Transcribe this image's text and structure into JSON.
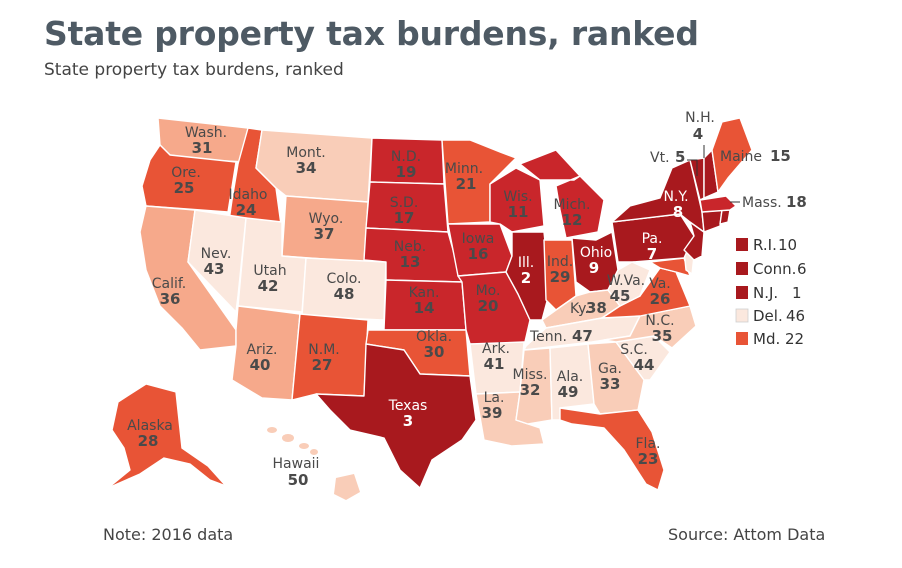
{
  "title": "State property tax burdens, ranked",
  "subtitle": "State property tax burdens, ranked",
  "note": "Note: 2016 data",
  "source": "Source: Attom Data",
  "colors": {
    "darkest": "#a8191e",
    "dark": "#c9262b",
    "medium": "#e85436",
    "orange": "#f0724c",
    "light": "#f6a98b",
    "pale": "#f9cdb8",
    "palest": "#fbe8de"
  },
  "states": {
    "WA": {
      "name": "Wash.",
      "rank": "31"
    },
    "OR": {
      "name": "Ore.",
      "rank": "25"
    },
    "CA": {
      "name": "Calif.",
      "rank": "36"
    },
    "ID": {
      "name": "Idaho",
      "rank": "24"
    },
    "NV": {
      "name": "Nev.",
      "rank": "43"
    },
    "MT": {
      "name": "Mont.",
      "rank": "34"
    },
    "WY": {
      "name": "Wyo.",
      "rank": "37"
    },
    "UT": {
      "name": "Utah",
      "rank": "42"
    },
    "CO": {
      "name": "Colo.",
      "rank": "48"
    },
    "AZ": {
      "name": "Ariz.",
      "rank": "40"
    },
    "NM": {
      "name": "N.M.",
      "rank": "27"
    },
    "ND": {
      "name": "N.D.",
      "rank": "19"
    },
    "SD": {
      "name": "S.D.",
      "rank": "17"
    },
    "NE": {
      "name": "Neb.",
      "rank": "13"
    },
    "KS": {
      "name": "Kan.",
      "rank": "14"
    },
    "OK": {
      "name": "Okla.",
      "rank": "30"
    },
    "TX": {
      "name": "Texas",
      "rank": "3"
    },
    "MN": {
      "name": "Minn.",
      "rank": "21"
    },
    "IA": {
      "name": "Iowa",
      "rank": "16"
    },
    "MO": {
      "name": "Mo.",
      "rank": "20"
    },
    "AR": {
      "name": "Ark.",
      "rank": "41"
    },
    "LA": {
      "name": "La.",
      "rank": "39"
    },
    "WI": {
      "name": "Wis.",
      "rank": "11"
    },
    "IL": {
      "name": "Ill.",
      "rank": "2"
    },
    "MI": {
      "name": "Mich.",
      "rank": "12"
    },
    "IN": {
      "name": "Ind.",
      "rank": "29"
    },
    "OH": {
      "name": "Ohio",
      "rank": "9"
    },
    "KY": {
      "name": "Ky.",
      "rank": "38"
    },
    "TN": {
      "name": "Tenn.",
      "rank": "47"
    },
    "MS": {
      "name": "Miss.",
      "rank": "32"
    },
    "AL": {
      "name": "Ala.",
      "rank": "49"
    },
    "GA": {
      "name": "Ga.",
      "rank": "33"
    },
    "FL": {
      "name": "Fla.",
      "rank": "23"
    },
    "SC": {
      "name": "S.C.",
      "rank": "44"
    },
    "NC": {
      "name": "N.C.",
      "rank": "35"
    },
    "VA": {
      "name": "Va.",
      "rank": "26"
    },
    "WV": {
      "name": "W.Va.",
      "rank": "45"
    },
    "PA": {
      "name": "Pa.",
      "rank": "7"
    },
    "NY": {
      "name": "N.Y.",
      "rank": "8"
    },
    "VT": {
      "name": "Vt.",
      "rank": "5"
    },
    "NH": {
      "name": "N.H.",
      "rank": "4"
    },
    "ME": {
      "name": "Maine",
      "rank": "15"
    },
    "MA": {
      "name": "Mass.",
      "rank": "18"
    },
    "AK": {
      "name": "Alaska",
      "rank": "28"
    },
    "HI": {
      "name": "Hawaii",
      "rank": "50"
    }
  },
  "legend": [
    {
      "name": "R.I.",
      "rank": "10",
      "color": "#a8191e"
    },
    {
      "name": "Conn.",
      "rank": "6",
      "color": "#a8191e"
    },
    {
      "name": "N.J.",
      "rank": "1",
      "color": "#a8191e"
    },
    {
      "name": "Del.",
      "rank": "46",
      "color": "#fbe8de"
    },
    {
      "name": "Md.",
      "rank": "22",
      "color": "#e85436"
    }
  ]
}
